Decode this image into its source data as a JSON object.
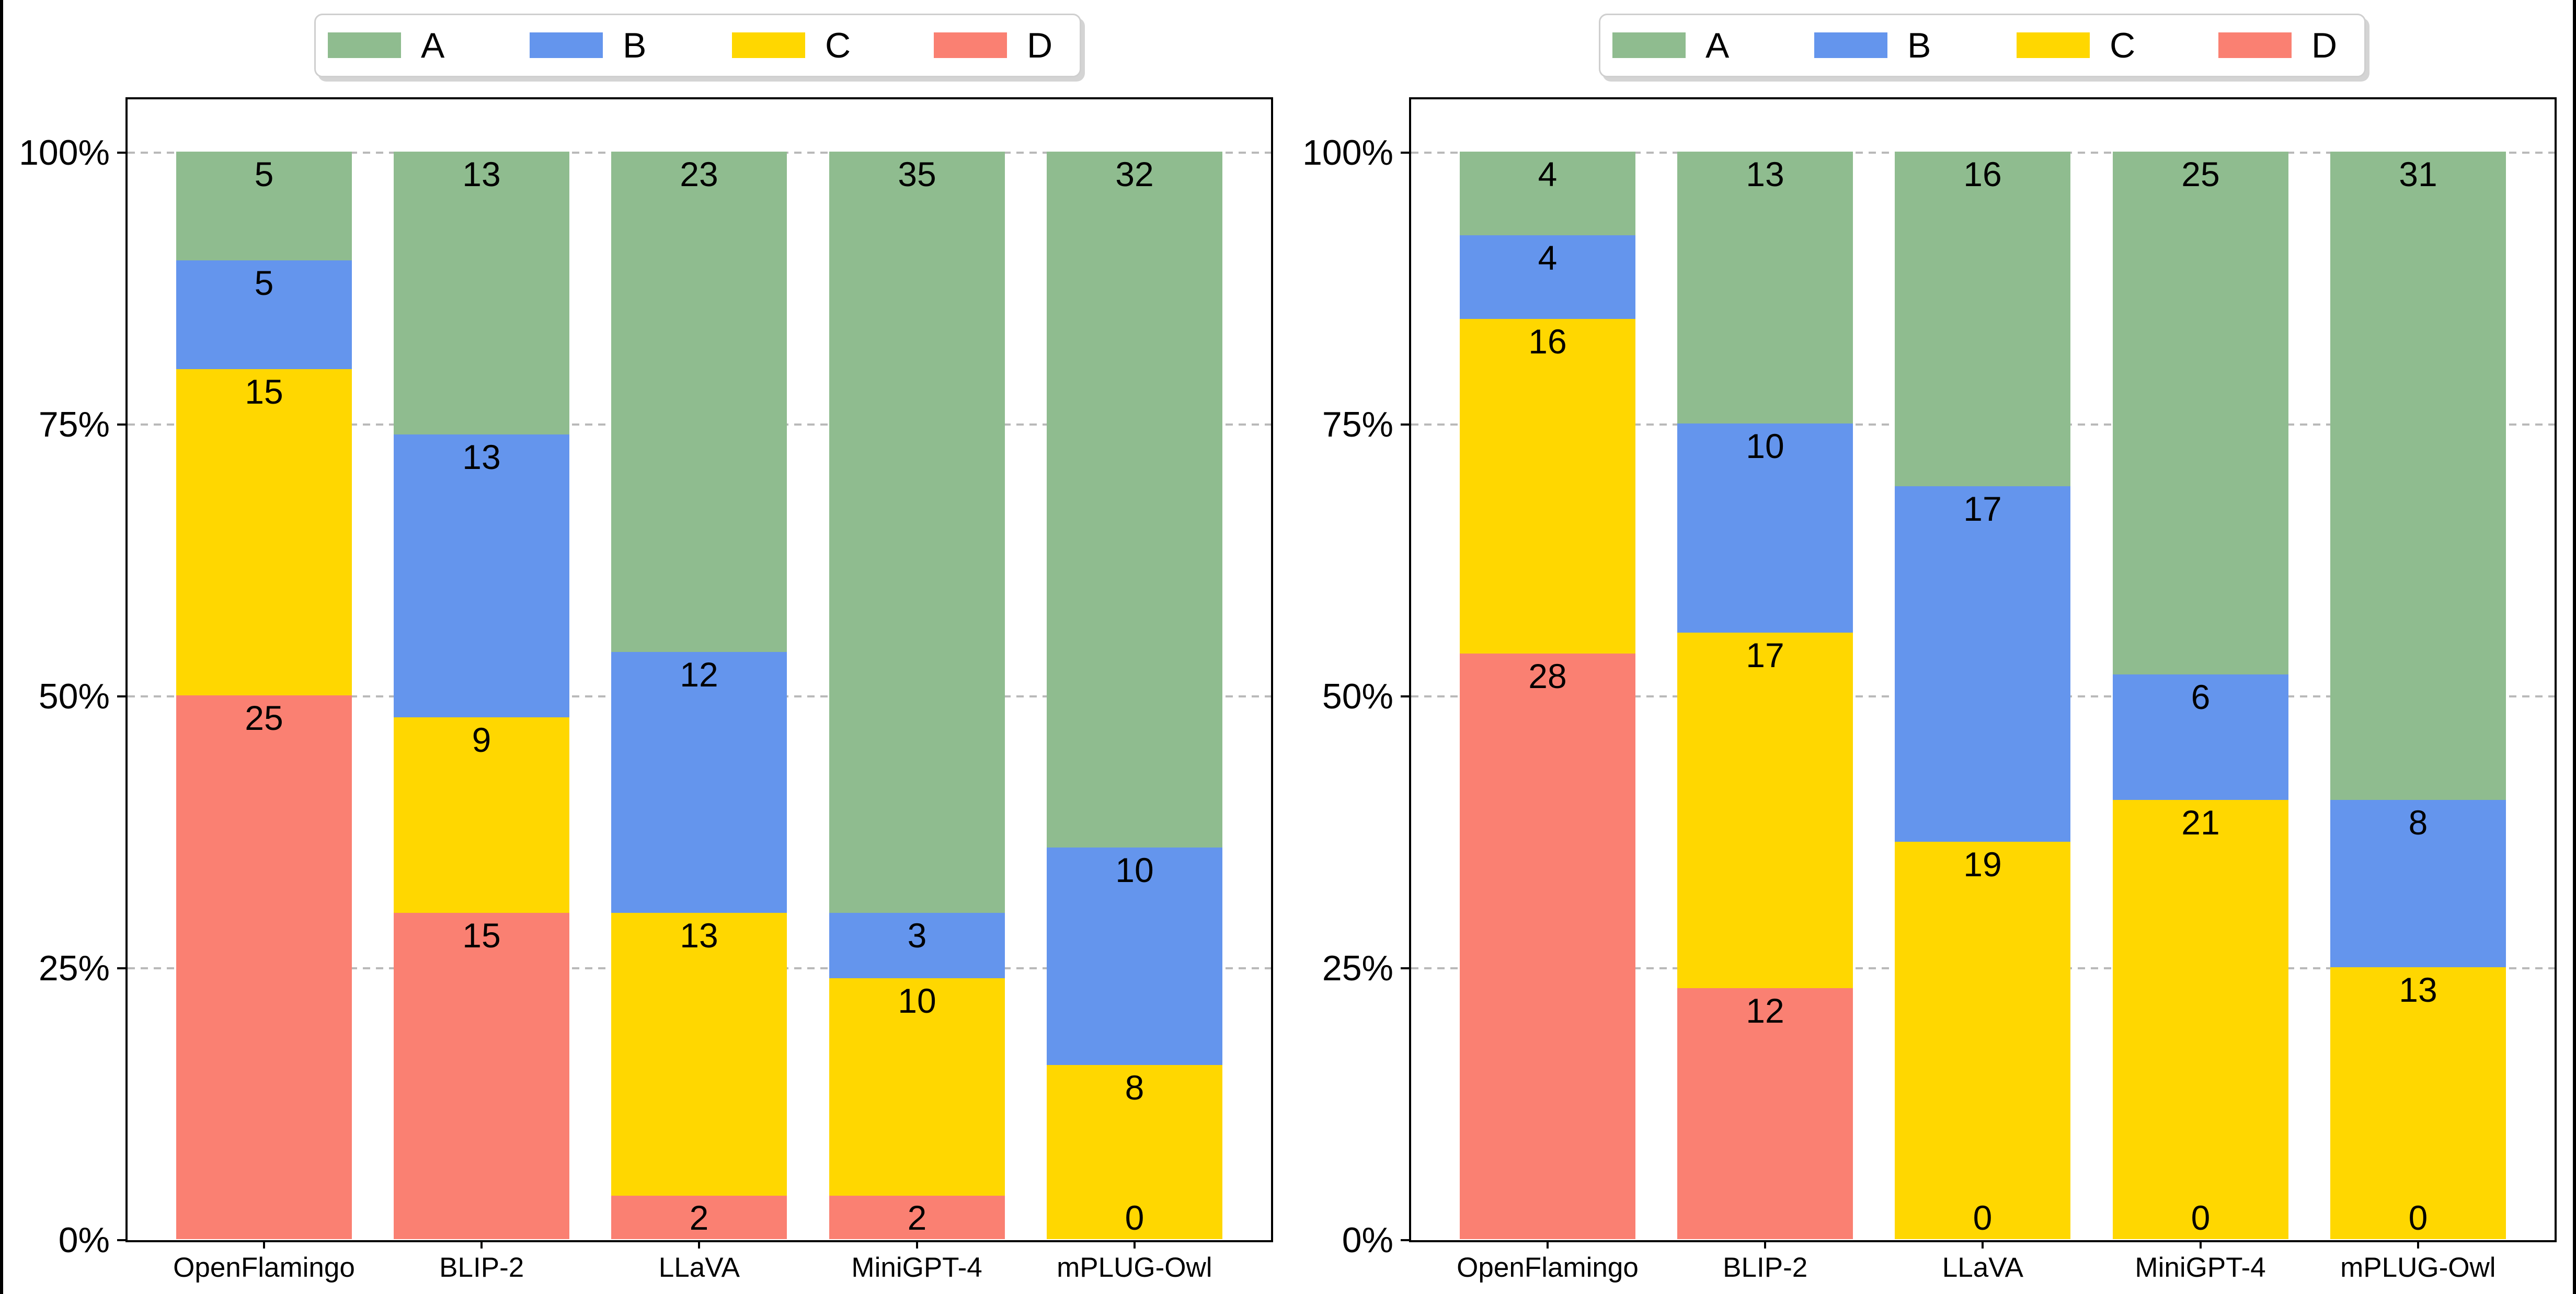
{
  "page": {
    "background": "#ffffff",
    "frame_border_color": "#000000",
    "gridline_color": "#b9b9b9",
    "legend_border_color": "#cfcfcf"
  },
  "chart_data": [
    {
      "panel": "left",
      "type": "bar",
      "stacked": true,
      "unit": "percent_of_total",
      "title": "",
      "xlabel": "",
      "ylabel": "",
      "categories": [
        "OpenFlamingo",
        "BLIP-2",
        "LLaVA",
        "MiniGPT-4",
        "mPLUG-Owl"
      ],
      "series": [
        {
          "name": "D",
          "color": "#FA8072",
          "values": [
            25,
            15,
            2,
            2,
            0
          ]
        },
        {
          "name": "C",
          "color": "#FFD700",
          "values": [
            15,
            9,
            13,
            10,
            8
          ]
        },
        {
          "name": "B",
          "color": "#6495ED",
          "values": [
            5,
            13,
            12,
            3,
            10
          ]
        },
        {
          "name": "A",
          "color": "#8FBC8F",
          "values": [
            5,
            13,
            23,
            35,
            32
          ]
        }
      ],
      "totals": [
        50,
        50,
        50,
        50,
        50
      ],
      "yticks": [
        "0%",
        "25%",
        "50%",
        "75%",
        "100%"
      ],
      "ytick_levels_percent": [
        0,
        25,
        50,
        75,
        100
      ],
      "ylim_percent": [
        0,
        105
      ],
      "grid": {
        "style": "dashed",
        "levels_percent": [
          25,
          50,
          75,
          100
        ]
      },
      "legend": {
        "labels": [
          "A",
          "B",
          "C",
          "D"
        ],
        "position": "top-center"
      }
    },
    {
      "panel": "right",
      "type": "bar",
      "stacked": true,
      "unit": "percent_of_total",
      "title": "",
      "xlabel": "",
      "ylabel": "",
      "categories": [
        "OpenFlamingo",
        "BLIP-2",
        "LLaVA",
        "MiniGPT-4",
        "mPLUG-Owl"
      ],
      "series": [
        {
          "name": "D",
          "color": "#FA8072",
          "values": [
            28,
            12,
            0,
            0,
            0
          ]
        },
        {
          "name": "C",
          "color": "#FFD700",
          "values": [
            16,
            17,
            19,
            21,
            13
          ]
        },
        {
          "name": "B",
          "color": "#6495ED",
          "values": [
            4,
            10,
            17,
            6,
            8
          ]
        },
        {
          "name": "A",
          "color": "#8FBC8F",
          "values": [
            4,
            13,
            16,
            25,
            31
          ]
        }
      ],
      "totals": [
        52,
        52,
        52,
        52,
        52
      ],
      "yticks": [
        "0%",
        "25%",
        "50%",
        "75%",
        "100%"
      ],
      "ytick_levels_percent": [
        0,
        25,
        50,
        75,
        100
      ],
      "ylim_percent": [
        0,
        105
      ],
      "grid": {
        "style": "dashed",
        "levels_percent": [
          25,
          50,
          75,
          100
        ]
      },
      "legend": {
        "labels": [
          "A",
          "B",
          "C",
          "D"
        ],
        "position": "top-center"
      }
    }
  ]
}
